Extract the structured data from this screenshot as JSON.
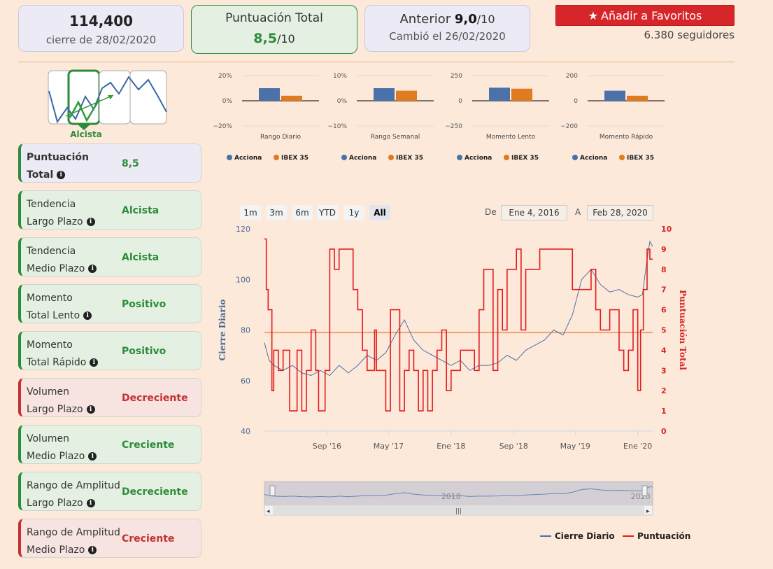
{
  "header": {
    "price": {
      "value": "114,400",
      "date": "cierre de 28/02/2020"
    },
    "total": {
      "title": "Puntuación Total",
      "score": "8,5",
      "den": "/10"
    },
    "previous": {
      "prefix": "Anterior ",
      "score": "9,0",
      "den": "/10",
      "changed": "Cambió el 26/02/2020"
    },
    "favorite_label": "Añadir a Favoritos",
    "followers": "6.380 seguidores"
  },
  "trend_selector": {
    "label": "Alcista"
  },
  "indicators": [
    {
      "line1": "Puntuación",
      "line2": "Total",
      "value": "8,5",
      "kind": "total"
    },
    {
      "line1": "Tendencia",
      "line2": "Largo Plazo",
      "value": "Alcista",
      "kind": "good"
    },
    {
      "line1": "Tendencia",
      "line2": "Medio Plazo",
      "value": "Alcista",
      "kind": "good"
    },
    {
      "line1": "Momento",
      "line2": "Total Lento",
      "value": "Positivo",
      "kind": "good"
    },
    {
      "line1": "Momento",
      "line2": "Total Rápido",
      "value": "Positivo",
      "kind": "good"
    },
    {
      "line1": "Volumen",
      "line2": "Largo Plazo",
      "value": "Decreciente",
      "kind": "bad"
    },
    {
      "line1": "Volumen",
      "line2": "Medio Plazo",
      "value": "Creciente",
      "kind": "good"
    },
    {
      "line1": "Rango de Amplitud",
      "line2": "Largo Plazo",
      "value": "Decreciente",
      "kind": "good"
    },
    {
      "line1": "Rango de Amplitud",
      "line2": "Medio Plazo",
      "value": "Creciente",
      "kind": "bad"
    }
  ],
  "range_buttons": [
    "1m",
    "3m",
    "6m",
    "YTD",
    "1y",
    "All"
  ],
  "date_range": {
    "from_label": "De",
    "from": "Ene 4, 2016",
    "to_label": "A",
    "to": "Feb 28, 2020"
  },
  "colors": {
    "accent_red": "#d7262a",
    "good": "#2e8b3a",
    "bad": "#c53030",
    "series_blue": "#4a72a8",
    "series_orange": "#e07b1f",
    "score_red": "#e31a1c"
  },
  "chart_data": [
    {
      "type": "bar",
      "title": "Rango Diario",
      "categories": [
        "Acciona",
        "IBEX 35"
      ],
      "values": [
        10,
        4
      ],
      "yticks": [
        "20%",
        "0%",
        "−20%"
      ],
      "ylim": [
        -20,
        20
      ]
    },
    {
      "type": "bar",
      "title": "Rango Semanal",
      "categories": [
        "Acciona",
        "IBEX 35"
      ],
      "values": [
        5,
        4
      ],
      "yticks": [
        "10%",
        "0%",
        "−10%"
      ],
      "ylim": [
        -10,
        10
      ]
    },
    {
      "type": "bar",
      "title": "Momento Lento",
      "categories": [
        "Acciona",
        "IBEX 35"
      ],
      "values": [
        130,
        120
      ],
      "yticks": [
        "250",
        "0",
        "−250"
      ],
      "ylim": [
        -250,
        250
      ]
    },
    {
      "type": "bar",
      "title": "Momento Rápido",
      "categories": [
        "Acciona",
        "IBEX 35"
      ],
      "values": [
        80,
        40
      ],
      "yticks": [
        "200",
        "0",
        "−200"
      ],
      "ylim": [
        -200,
        200
      ]
    },
    {
      "type": "line",
      "title": "",
      "ylabel": "Cierre Diario",
      "y2label": "Puntuación Total",
      "ylim": [
        40,
        120
      ],
      "y2lim": [
        0,
        10
      ],
      "yticks": [
        "120",
        "100",
        "80",
        "60",
        "40"
      ],
      "y2ticks": [
        "10",
        "9",
        "8",
        "7",
        "6",
        "5",
        "4",
        "3",
        "2",
        "1",
        "0"
      ],
      "xticks": [
        "Sep '16",
        "May '17",
        "Ene '18",
        "Sep '18",
        "May '19",
        "Ene '20"
      ],
      "xlim": [
        2016.0,
        2020.16
      ],
      "xtick_values": [
        2016.67,
        2017.33,
        2018.0,
        2018.67,
        2019.33,
        2020.0
      ],
      "reference_line": 79,
      "series": [
        {
          "name": "Cierre Diario",
          "axis": "left",
          "x": [
            2016.0,
            2016.05,
            2016.1,
            2016.2,
            2016.3,
            2016.4,
            2016.5,
            2016.6,
            2016.7,
            2016.8,
            2016.9,
            2017.0,
            2017.1,
            2017.2,
            2017.3,
            2017.4,
            2017.5,
            2017.6,
            2017.7,
            2017.8,
            2017.9,
            2018.0,
            2018.1,
            2018.2,
            2018.3,
            2018.4,
            2018.5,
            2018.6,
            2018.7,
            2018.8,
            2018.9,
            2019.0,
            2019.1,
            2019.2,
            2019.3,
            2019.4,
            2019.5,
            2019.6,
            2019.7,
            2019.8,
            2019.9,
            2020.0,
            2020.05,
            2020.1,
            2020.13,
            2020.16
          ],
          "values": [
            75,
            68,
            66,
            64,
            66,
            63,
            62,
            64,
            62,
            66,
            63,
            66,
            70,
            68,
            71,
            78,
            84,
            76,
            72,
            70,
            68,
            66,
            68,
            64,
            66,
            66,
            67,
            70,
            68,
            72,
            74,
            76,
            80,
            78,
            86,
            100,
            104,
            98,
            95,
            96,
            94,
            93,
            94,
            108,
            115,
            113
          ]
        },
        {
          "name": "Puntuación",
          "axis": "right",
          "x": [
            2016.0,
            2016.02,
            2016.04,
            2016.08,
            2016.1,
            2016.15,
            2016.2,
            2016.27,
            2016.35,
            2016.4,
            2016.45,
            2016.5,
            2016.55,
            2016.58,
            2016.65,
            2016.7,
            2016.75,
            2016.8,
            2016.83,
            2016.9,
            2016.95,
            2017.0,
            2017.05,
            2017.1,
            2017.18,
            2017.2,
            2017.3,
            2017.35,
            2017.45,
            2017.5,
            2017.55,
            2017.6,
            2017.65,
            2017.7,
            2017.75,
            2017.8,
            2017.85,
            2017.9,
            2017.95,
            2018.0,
            2018.05,
            2018.1,
            2018.15,
            2018.25,
            2018.3,
            2018.35,
            2018.45,
            2018.5,
            2018.55,
            2018.6,
            2018.7,
            2018.75,
            2018.8,
            2018.9,
            2018.95,
            2019.05,
            2019.1,
            2019.2,
            2019.3,
            2019.4,
            2019.5,
            2019.55,
            2019.6,
            2019.7,
            2019.8,
            2019.85,
            2019.9,
            2019.95,
            2020.0,
            2020.03,
            2020.06,
            2020.1,
            2020.13,
            2020.16
          ],
          "values": [
            9.5,
            7,
            6,
            2,
            4,
            3,
            4,
            1,
            4,
            1,
            3,
            5,
            3,
            1,
            3,
            9,
            8,
            9,
            9,
            9,
            7,
            6,
            4,
            3,
            5,
            3,
            1,
            6,
            1,
            3,
            4,
            3,
            1,
            3,
            1,
            3,
            4,
            5,
            2,
            3,
            3,
            4,
            4,
            3,
            6,
            8,
            3,
            7,
            5,
            8,
            9,
            5,
            8,
            8,
            9,
            9,
            9,
            9,
            7,
            7,
            8,
            6,
            5,
            6,
            4,
            3,
            4,
            6,
            2,
            5,
            7,
            9,
            8.5,
            8.5
          ]
        }
      ],
      "navigator_labels": [
        "2018",
        "2020"
      ],
      "legend": [
        "Cierre Diario",
        "Puntuación"
      ]
    }
  ]
}
